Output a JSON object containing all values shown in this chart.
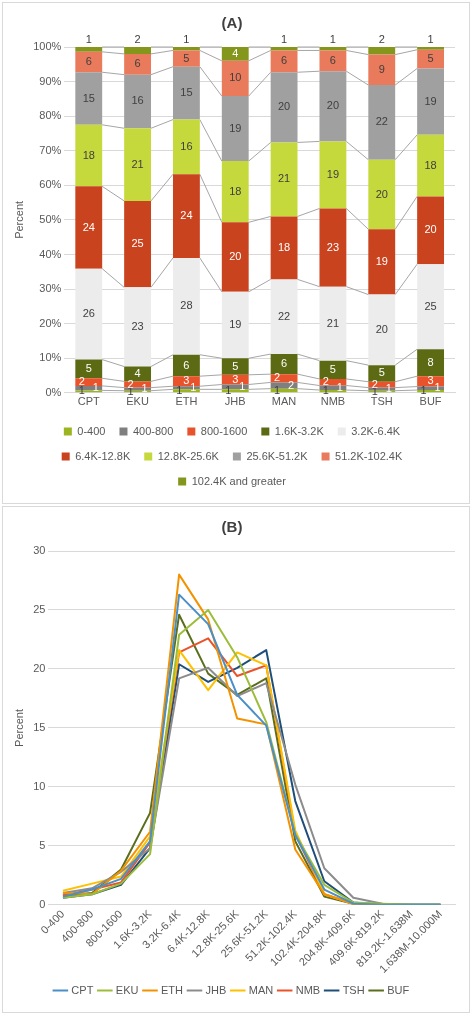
{
  "chart_data": [
    {
      "type": "bar",
      "title": "(A)",
      "ylabel": "Percent",
      "stacked": true,
      "categories": [
        "CPT",
        "EKU",
        "ETH",
        "JHB",
        "MAN",
        "NMB",
        "TSH",
        "BUF"
      ],
      "ylim": [
        0,
        100
      ],
      "yticks": [
        {
          "value": 0,
          "label": "0%"
        },
        {
          "value": 10,
          "label": "10%"
        },
        {
          "value": 20,
          "label": "20%"
        },
        {
          "value": 30,
          "label": "30%"
        },
        {
          "value": 40,
          "label": "40%"
        },
        {
          "value": 50,
          "label": "50%"
        },
        {
          "value": 60,
          "label": "60%"
        },
        {
          "value": 70,
          "label": "70%"
        },
        {
          "value": 80,
          "label": "80%"
        },
        {
          "value": 90,
          "label": "90%"
        },
        {
          "value": 100,
          "label": "100%"
        }
      ],
      "grid": "y",
      "legend": "bottom",
      "series": [
        {
          "name": "0-400",
          "color": "#9bb521",
          "values": [
            0.7,
            0.6,
            1.0,
            1.0,
            1.2,
            0.8,
            0.6,
            0.8
          ],
          "value_labels": [
            "1",
            "1",
            "1",
            "1",
            "1",
            "1",
            "1",
            "1"
          ]
        },
        {
          "name": "400-800",
          "color": "#7f7f7f",
          "values": [
            1.3,
            0.9,
            0.9,
            1.4,
            1.8,
            1.3,
            0.9,
            1.0
          ],
          "value_labels": [
            "1",
            "1",
            "1",
            "1",
            "2",
            "1",
            "1",
            "1"
          ]
        },
        {
          "name": "800-1600",
          "color": "#e8532b",
          "values": [
            2.2,
            1.8,
            2.9,
            2.8,
            2.4,
            1.9,
            1.7,
            3.0
          ],
          "value_labels": [
            "2",
            "2",
            "3",
            "3",
            "2",
            "2",
            "2",
            "3"
          ]
        },
        {
          "name": "1.6K-3.2K",
          "color": "#5c6a13",
          "values": [
            5.4,
            4.3,
            6.2,
            4.8,
            5.8,
            5.3,
            4.8,
            7.8
          ],
          "value_labels": [
            "5",
            "4",
            "6",
            "5",
            "6",
            "5",
            "5",
            "8"
          ]
        },
        {
          "name": "3.2K-6.4K",
          "color": "#ececec",
          "values": [
            26.3,
            22.9,
            28.0,
            19.2,
            21.6,
            21.4,
            20.4,
            24.6
          ],
          "value_labels": [
            "26",
            "23",
            "28",
            "19",
            "22",
            "21",
            "20",
            "25"
          ]
        },
        {
          "name": "6.4K-12.8K",
          "color": "#c8431e",
          "values": [
            23.8,
            25.0,
            24.2,
            20.1,
            18.2,
            22.6,
            18.9,
            19.6
          ],
          "value_labels": [
            "24",
            "25",
            "24",
            "20",
            "18",
            "23",
            "19",
            "20"
          ]
        },
        {
          "name": "12.8K-25.6K",
          "color": "#c6d93c",
          "values": [
            17.8,
            21.0,
            15.8,
            17.7,
            21.4,
            19.4,
            20.1,
            17.8
          ],
          "value_labels": [
            "18",
            "21",
            "16",
            "18",
            "21",
            "19",
            "20",
            "18"
          ]
        },
        {
          "name": "25.6K-51.2K",
          "color": "#a0a0a0",
          "values": [
            15.2,
            15.5,
            15.3,
            18.8,
            20.3,
            20.3,
            21.6,
            19.2
          ],
          "value_labels": [
            "15",
            "16",
            "15",
            "19",
            "20",
            "20",
            "22",
            "19"
          ]
        },
        {
          "name": "51.2K-102.4K",
          "color": "#e97a5b",
          "values": [
            5.9,
            6.0,
            4.7,
            10.2,
            6.3,
            6.0,
            8.8,
            5.4
          ],
          "value_labels": [
            "6",
            "6",
            "5",
            "10",
            "6",
            "6",
            "9",
            "5"
          ]
        },
        {
          "name": "102.4K and greater",
          "color": "#84961c",
          "values": [
            1.4,
            2.0,
            1.0,
            4.0,
            1.0,
            1.0,
            2.2,
            0.8
          ],
          "value_labels": [
            "1",
            "2",
            "1",
            "4",
            "1",
            "1",
            "2",
            "1"
          ]
        }
      ]
    },
    {
      "type": "line",
      "title": "(B)",
      "ylabel": "Percent",
      "categories": [
        "0-400",
        "400-800",
        "800-1600",
        "1.6K-3.2K",
        "3.2K-6.4K",
        "6.4K-12.8K",
        "12.8K-25.6K",
        "25.6K-51.2K",
        "51.2K-102.4K",
        "102.4K-204.8K",
        "204.8K-409.6K",
        "409.6K-819.2K",
        "819.2K-1.638M",
        "1.638M-10.000M"
      ],
      "ylim": [
        0,
        30
      ],
      "yticks": [
        0,
        5,
        10,
        15,
        20,
        25,
        30
      ],
      "grid": "y",
      "legend": "bottom",
      "marker": "none",
      "series": [
        {
          "name": "CPT",
          "color": "#4a8fc7",
          "values": [
            0.7,
            1.3,
            2.2,
            5.4,
            26.3,
            23.8,
            17.8,
            15.2,
            5.9,
            1.3,
            0.1,
            0,
            0,
            0
          ]
        },
        {
          "name": "EKU",
          "color": "#9cbd3a",
          "values": [
            0.6,
            0.9,
            1.8,
            4.3,
            22.9,
            25.0,
            21.0,
            15.5,
            6.0,
            1.7,
            0.2,
            0.1,
            0,
            0
          ]
        },
        {
          "name": "ETH",
          "color": "#f39200",
          "values": [
            1.0,
            0.9,
            2.9,
            6.2,
            28.0,
            24.2,
            15.8,
            15.3,
            4.7,
            0.9,
            0.1,
            0,
            null,
            null
          ]
        },
        {
          "name": "JHB",
          "color": "#8c8c8c",
          "values": [
            1.0,
            1.4,
            2.8,
            4.8,
            19.2,
            20.1,
            17.7,
            18.8,
            10.2,
            3.1,
            0.6,
            0.1,
            0,
            0
          ]
        },
        {
          "name": "MAN",
          "color": "#ffc000",
          "values": [
            1.2,
            1.8,
            2.4,
            5.8,
            21.6,
            18.2,
            21.4,
            20.3,
            6.3,
            0.9,
            0.1,
            0,
            null,
            null
          ]
        },
        {
          "name": "NMB",
          "color": "#e8532b",
          "values": [
            0.8,
            1.3,
            1.9,
            5.3,
            21.4,
            22.6,
            19.4,
            20.3,
            6.0,
            0.9,
            0.1,
            null,
            null,
            null
          ]
        },
        {
          "name": "TSH",
          "color": "#1f4e79",
          "values": [
            0.6,
            0.9,
            1.7,
            4.8,
            20.4,
            18.9,
            20.1,
            21.6,
            8.8,
            2.0,
            0.2,
            0,
            0,
            0
          ]
        },
        {
          "name": "BUF",
          "color": "#5a6e1e",
          "values": [
            0.8,
            1.0,
            3.0,
            7.8,
            24.6,
            19.6,
            17.8,
            19.2,
            5.4,
            0.7,
            0.1,
            0,
            0,
            0
          ]
        }
      ]
    }
  ]
}
